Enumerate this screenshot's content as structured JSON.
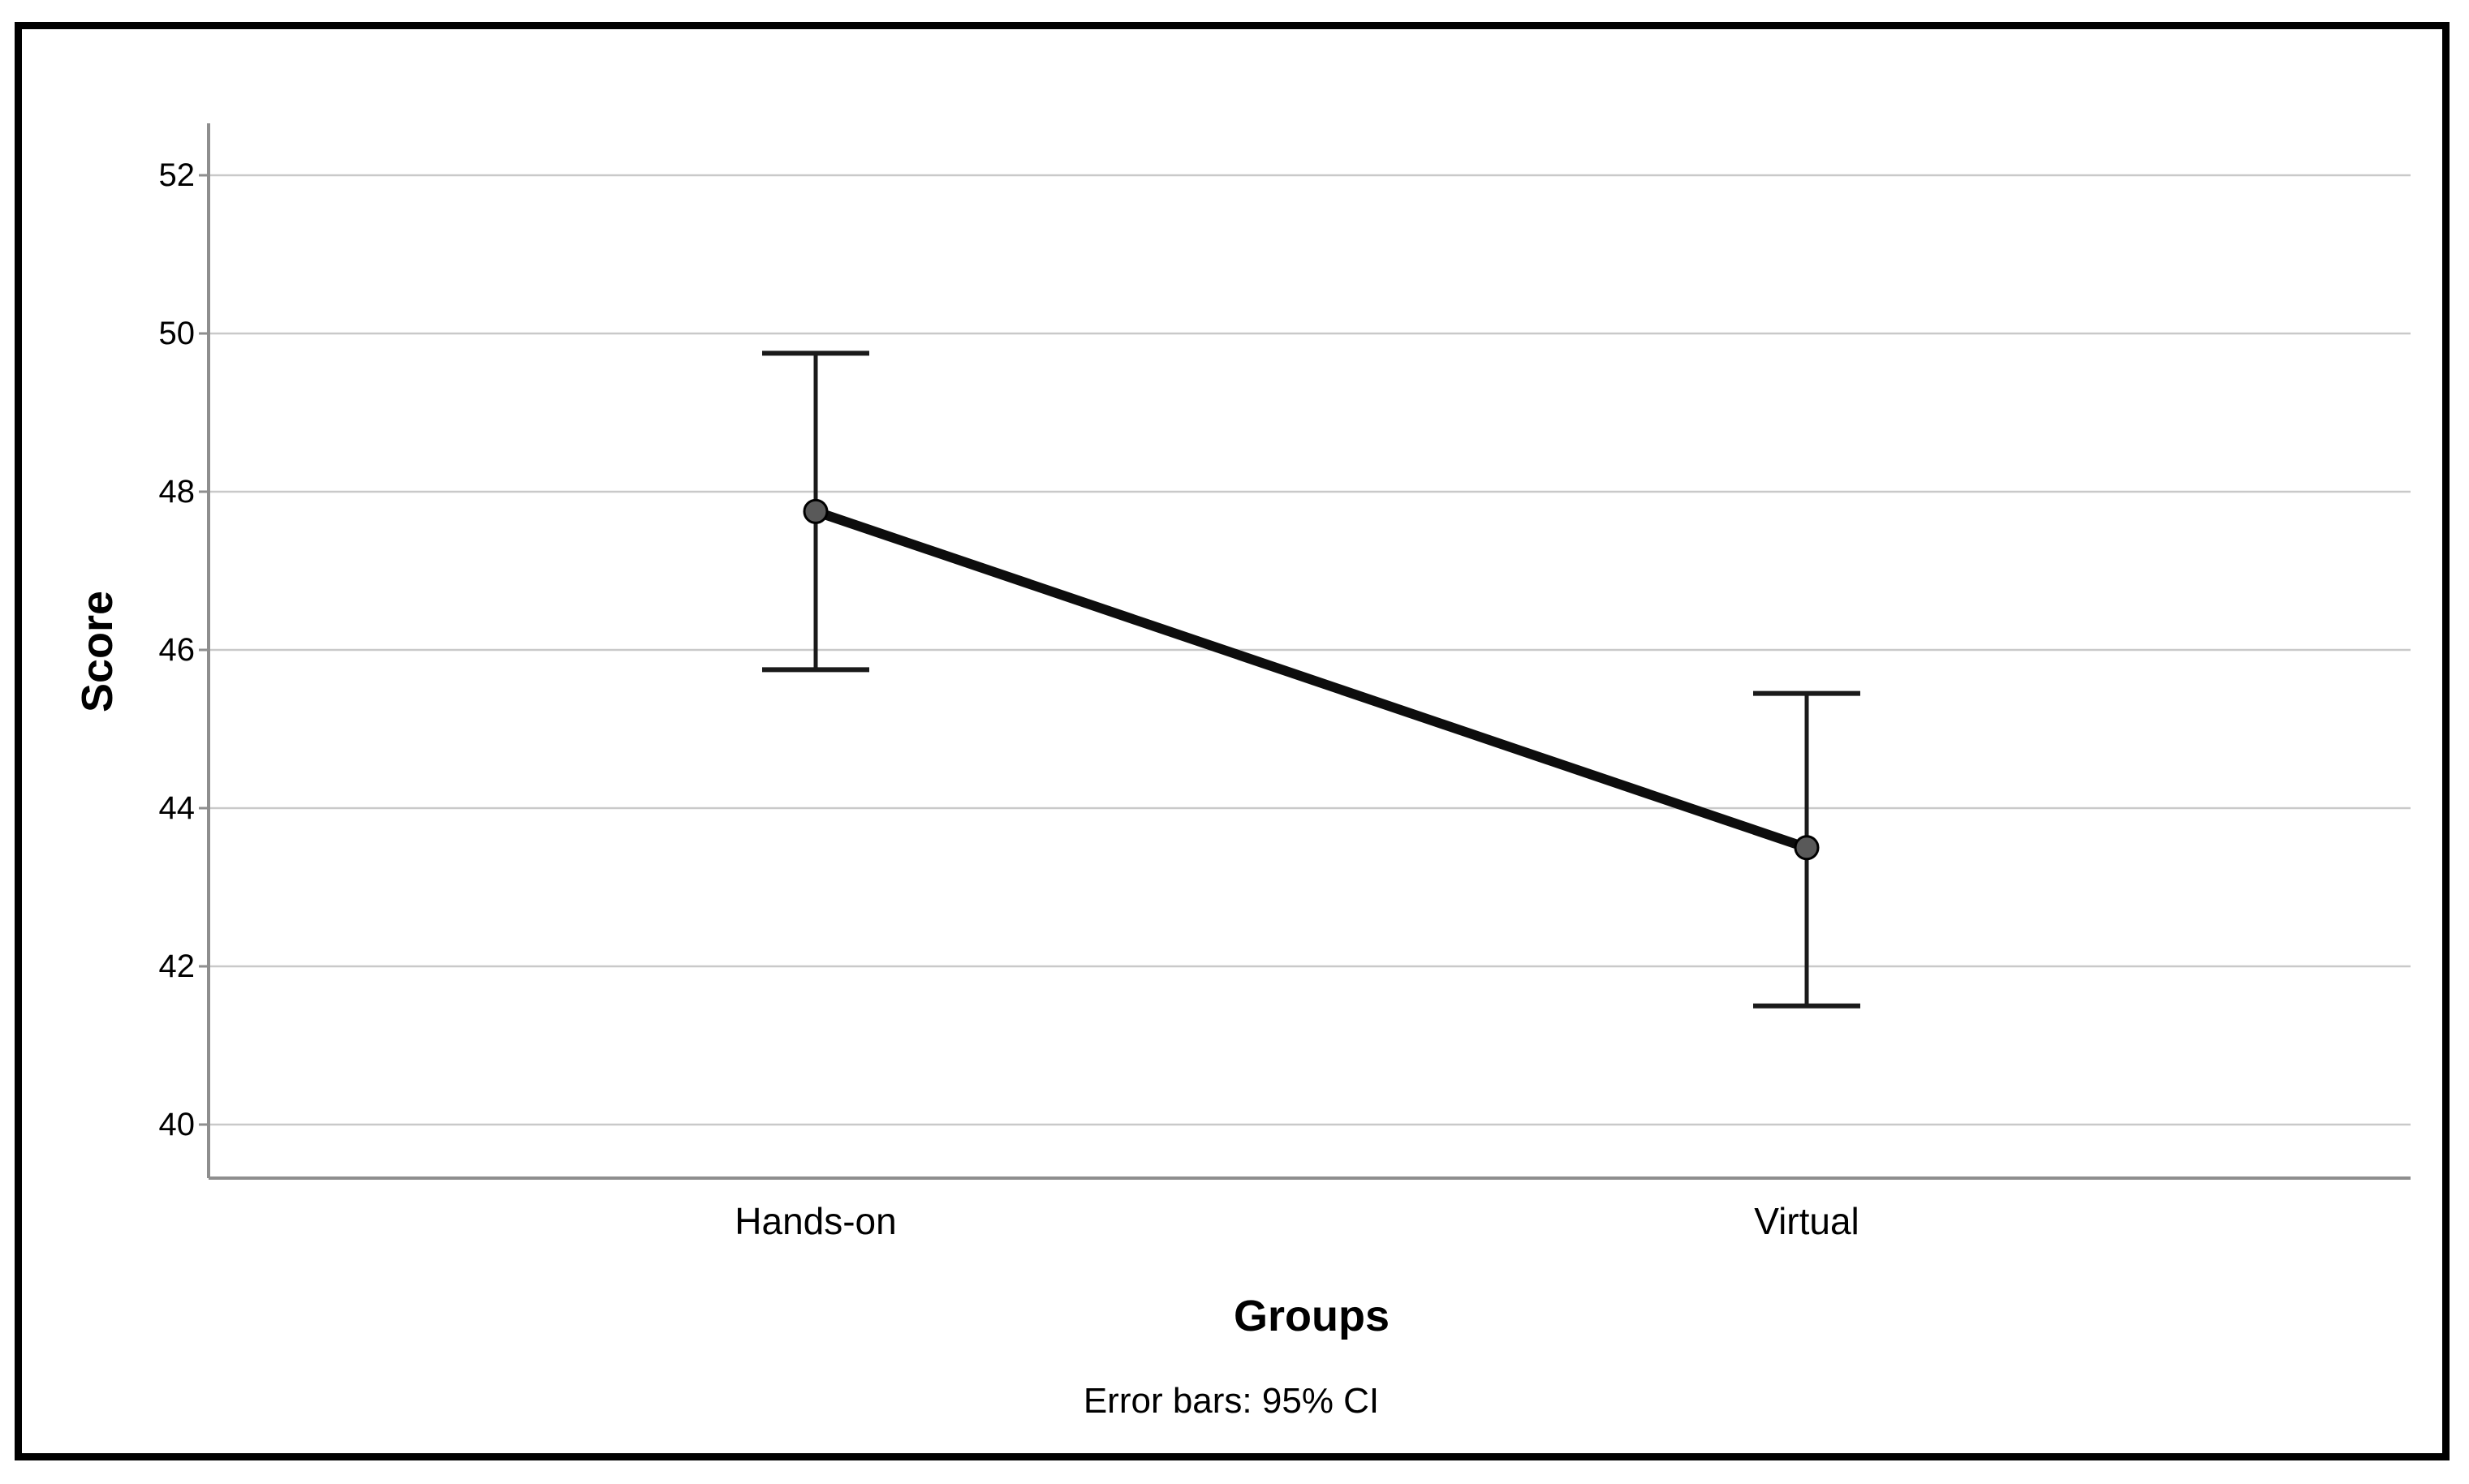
{
  "chart_data": {
    "type": "line",
    "title": "",
    "xlabel": "Groups",
    "ylabel": "Score",
    "caption": "Error bars: 95% CI",
    "categories": [
      "Hands-on",
      "Virtual"
    ],
    "series": [
      {
        "name": "Score",
        "means": [
          47.75,
          43.5
        ],
        "ci_lower": [
          45.75,
          41.5
        ],
        "ci_upper": [
          49.75,
          45.45
        ]
      }
    ],
    "yticks": [
      40,
      42,
      44,
      46,
      48,
      50,
      52
    ],
    "ylim": [
      39.3,
      52.7
    ],
    "grid": true,
    "legend_position": "none",
    "error_bar_style": "caps",
    "colors": {
      "background": "#ffffff",
      "frame_border": "#000000",
      "gridline": "#c9c9c9",
      "axis_line": "#8e8e8e",
      "error_bar": "#1a1a1a",
      "series_line": "#0d0d0d",
      "marker_fill": "#595959",
      "marker_stroke": "#000000",
      "text": "#000000"
    }
  }
}
